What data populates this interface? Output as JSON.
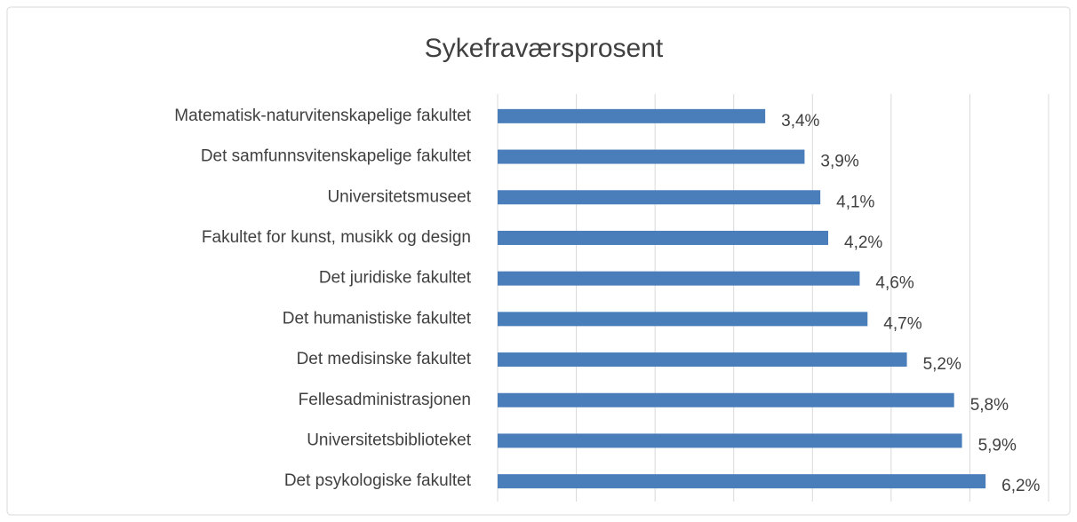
{
  "chart_data": {
    "type": "bar",
    "orientation": "horizontal",
    "title": "Sykefraværsprosent",
    "categories": [
      "Matematisk-naturvitenskapelige fakultet",
      "Det samfunnsvitenskapelige fakultet",
      "Universitetsmuseet",
      "Fakultet for kunst, musikk og design",
      "Det juridiske fakultet",
      "Det humanistiske fakultet",
      "Det medisinske fakultet",
      "Fellesadministrasjonen",
      "Universitetsbiblioteket",
      "Det psykologiske fakultet"
    ],
    "values": [
      3.4,
      3.9,
      4.1,
      4.2,
      4.6,
      4.7,
      5.2,
      5.8,
      5.9,
      6.2
    ],
    "value_labels": [
      "3,4%",
      "3,9%",
      "4,1%",
      "4,2%",
      "4,6%",
      "4,7%",
      "5,2%",
      "5,8%",
      "5,9%",
      "6,2%"
    ],
    "color": "#4a7ebb",
    "xlim": [
      0,
      7
    ],
    "xticks": [
      0,
      1,
      2,
      3,
      4,
      5,
      6,
      7
    ],
    "grid": true
  }
}
